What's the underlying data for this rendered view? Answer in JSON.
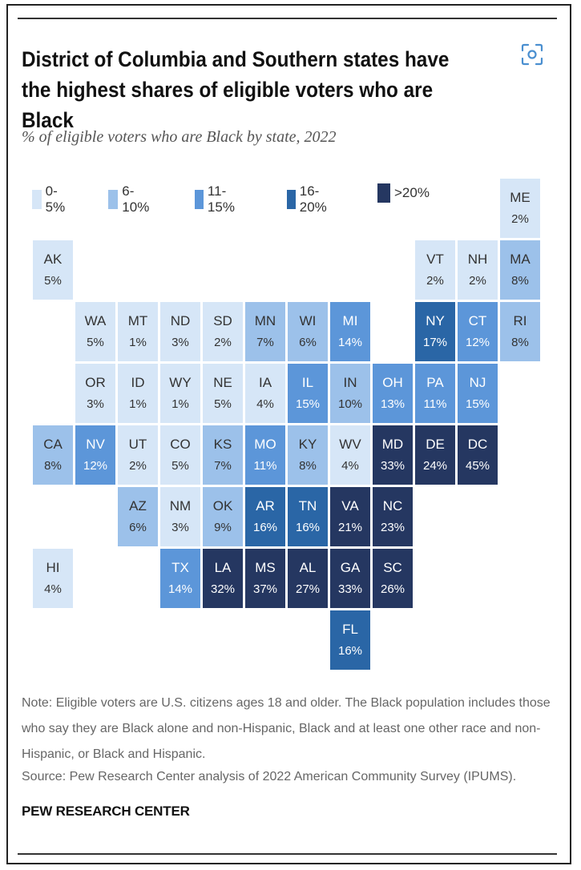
{
  "title": "District of Columbia and Southern states have the highest shares of eligible voters who are Black",
  "subtitle": "% of eligible voters who are Black by state, 2022",
  "legend": [
    {
      "label": "0-5%",
      "color": "#d6e6f7"
    },
    {
      "label": "6-10%",
      "color": "#9cc1ea"
    },
    {
      "label": "11-15%",
      "color": "#5c96d9"
    },
    {
      "label": "16-20%",
      "color": "#2a66a6"
    },
    {
      "label": ">20%",
      "color": "#253761"
    }
  ],
  "states": [
    {
      "abbr": "ME",
      "value": "2%",
      "pct": 2
    },
    {
      "abbr": "AK",
      "value": "5%",
      "pct": 5
    },
    {
      "abbr": "VT",
      "value": "2%",
      "pct": 2
    },
    {
      "abbr": "NH",
      "value": "2%",
      "pct": 2
    },
    {
      "abbr": "MA",
      "value": "8%",
      "pct": 8
    },
    {
      "abbr": "WA",
      "value": "5%",
      "pct": 5
    },
    {
      "abbr": "MT",
      "value": "1%",
      "pct": 1
    },
    {
      "abbr": "ND",
      "value": "3%",
      "pct": 3
    },
    {
      "abbr": "SD",
      "value": "2%",
      "pct": 2
    },
    {
      "abbr": "MN",
      "value": "7%",
      "pct": 7
    },
    {
      "abbr": "WI",
      "value": "6%",
      "pct": 6
    },
    {
      "abbr": "MI",
      "value": "14%",
      "pct": 14
    },
    {
      "abbr": "NY",
      "value": "17%",
      "pct": 17
    },
    {
      "abbr": "CT",
      "value": "12%",
      "pct": 12
    },
    {
      "abbr": "RI",
      "value": "8%",
      "pct": 8
    },
    {
      "abbr": "OR",
      "value": "3%",
      "pct": 3
    },
    {
      "abbr": "ID",
      "value": "1%",
      "pct": 1
    },
    {
      "abbr": "WY",
      "value": "1%",
      "pct": 1
    },
    {
      "abbr": "NE",
      "value": "5%",
      "pct": 5
    },
    {
      "abbr": "IA",
      "value": "4%",
      "pct": 4
    },
    {
      "abbr": "IL",
      "value": "15%",
      "pct": 15
    },
    {
      "abbr": "IN",
      "value": "10%",
      "pct": 10
    },
    {
      "abbr": "OH",
      "value": "13%",
      "pct": 13
    },
    {
      "abbr": "PA",
      "value": "11%",
      "pct": 11
    },
    {
      "abbr": "NJ",
      "value": "15%",
      "pct": 15
    },
    {
      "abbr": "CA",
      "value": "8%",
      "pct": 8
    },
    {
      "abbr": "NV",
      "value": "12%",
      "pct": 12
    },
    {
      "abbr": "UT",
      "value": "2%",
      "pct": 2
    },
    {
      "abbr": "CO",
      "value": "5%",
      "pct": 5
    },
    {
      "abbr": "KS",
      "value": "7%",
      "pct": 7
    },
    {
      "abbr": "MO",
      "value": "11%",
      "pct": 11
    },
    {
      "abbr": "KY",
      "value": "8%",
      "pct": 8
    },
    {
      "abbr": "WV",
      "value": "4%",
      "pct": 4
    },
    {
      "abbr": "MD",
      "value": "33%",
      "pct": 33
    },
    {
      "abbr": "DE",
      "value": "24%",
      "pct": 24
    },
    {
      "abbr": "DC",
      "value": "45%",
      "pct": 45
    },
    {
      "abbr": "AZ",
      "value": "6%",
      "pct": 6
    },
    {
      "abbr": "NM",
      "value": "3%",
      "pct": 3
    },
    {
      "abbr": "OK",
      "value": "9%",
      "pct": 9
    },
    {
      "abbr": "AR",
      "value": "16%",
      "pct": 16
    },
    {
      "abbr": "TN",
      "value": "16%",
      "pct": 16
    },
    {
      "abbr": "VA",
      "value": "21%",
      "pct": 21
    },
    {
      "abbr": "NC",
      "value": "23%",
      "pct": 23
    },
    {
      "abbr": "HI",
      "value": "4%",
      "pct": 4
    },
    {
      "abbr": "TX",
      "value": "14%",
      "pct": 14
    },
    {
      "abbr": "LA",
      "value": "32%",
      "pct": 32
    },
    {
      "abbr": "MS",
      "value": "37%",
      "pct": 37
    },
    {
      "abbr": "AL",
      "value": "27%",
      "pct": 27
    },
    {
      "abbr": "GA",
      "value": "33%",
      "pct": 33
    },
    {
      "abbr": "SC",
      "value": "26%",
      "pct": 26
    },
    {
      "abbr": "FL",
      "value": "16%",
      "pct": 16
    }
  ],
  "note": "Note: Eligible voters are U.S. citizens ages 18 and older. The Black population includes those who say they are Black alone and non-Hispanic, Black and at least one other race and non-Hispanic, or Black and Hispanic.",
  "source": "Source: Pew Research Center analysis of 2022 American Community Survey (IPUMS).",
  "brand": "PEW RESEARCH CENTER",
  "focus_icon": "focus-frame-icon"
}
